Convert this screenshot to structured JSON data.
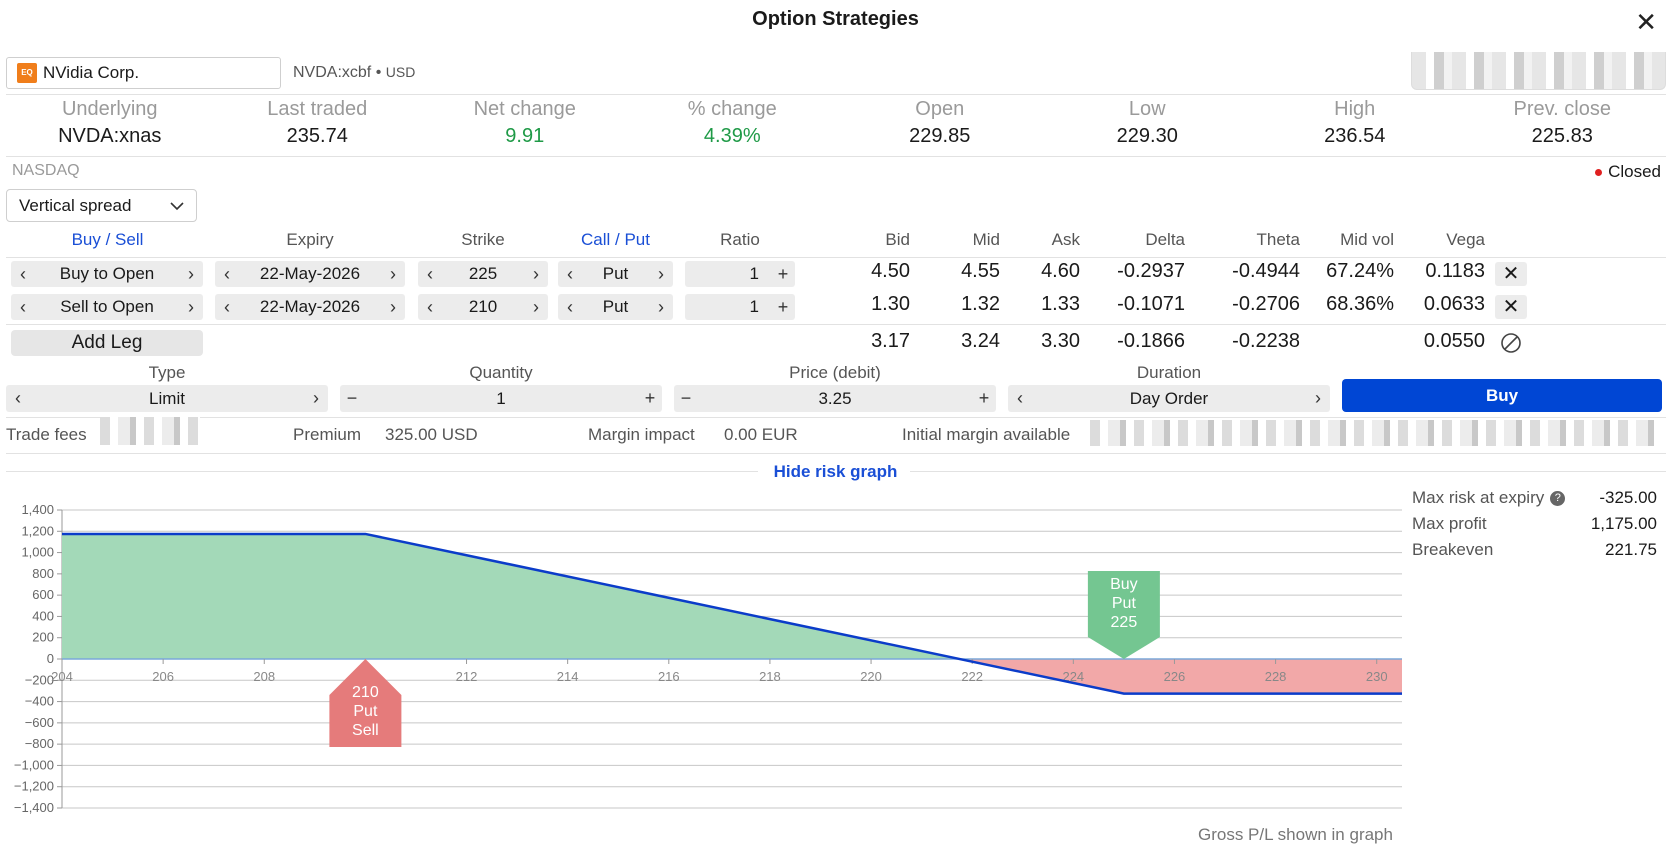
{
  "title": "Option Strategies",
  "instrument": {
    "name": "NVidia Corp.",
    "logo_text": "EQ",
    "symbol": "NVDA:xcbf",
    "currency": "USD"
  },
  "quote": [
    {
      "label": "Underlying",
      "value": "NVDA:xnas",
      "color": ""
    },
    {
      "label": "Last traded",
      "value": "235.74",
      "color": ""
    },
    {
      "label": "Net change",
      "value": "9.91",
      "color": "green"
    },
    {
      "label": "% change",
      "value": "4.39%",
      "color": "green"
    },
    {
      "label": "Open",
      "value": "229.85",
      "color": ""
    },
    {
      "label": "Low",
      "value": "229.30",
      "color": ""
    },
    {
      "label": "High",
      "value": "236.54",
      "color": ""
    },
    {
      "label": "Prev. close",
      "value": "225.83",
      "color": ""
    }
  ],
  "exchange": "NASDAQ",
  "market_status": "Closed",
  "strategy_select": "Vertical spread",
  "leg_headers": {
    "buy_sell": "Buy / Sell",
    "expiry": "Expiry",
    "strike": "Strike",
    "call_put": "Call / Put",
    "ratio": "Ratio",
    "bid": "Bid",
    "mid": "Mid",
    "ask": "Ask",
    "delta": "Delta",
    "theta": "Theta",
    "mid_vol": "Mid vol",
    "vega": "Vega"
  },
  "legs": [
    {
      "side": "Buy to Open",
      "expiry": "22-May-2026",
      "strike": "225",
      "type": "Put",
      "ratio": "1",
      "bid": "4.50",
      "mid": "4.55",
      "ask": "4.60",
      "delta": "-0.2937",
      "theta": "-0.4944",
      "mid_vol": "67.24%",
      "vega": "0.1183"
    },
    {
      "side": "Sell to Open",
      "expiry": "22-May-2026",
      "strike": "210",
      "type": "Put",
      "ratio": "1",
      "bid": "1.30",
      "mid": "1.32",
      "ask": "1.33",
      "delta": "-0.1071",
      "theta": "-0.2706",
      "mid_vol": "68.36%",
      "vega": "0.0633"
    }
  ],
  "totals": {
    "add_leg": "Add Leg",
    "bid": "3.17",
    "mid": "3.24",
    "ask": "3.30",
    "delta": "-0.1866",
    "theta": "-0.2238",
    "vega": "0.0550"
  },
  "order": {
    "type_label": "Type",
    "type_value": "Limit",
    "quantity_label": "Quantity",
    "quantity_value": "1",
    "price_label": "Price (debit)",
    "price_value": "3.25",
    "duration_label": "Duration",
    "duration_value": "Day Order",
    "buy_label": "Buy"
  },
  "fees": {
    "trade_fees_label": "Trade fees",
    "premium_label": "Premium",
    "premium_value": "325.00 USD",
    "margin_label": "Margin impact",
    "margin_value": "0.00 EUR",
    "initial_margin_label": "Initial margin available"
  },
  "hide_graph": "Hide risk graph",
  "stats": [
    {
      "label": "Max risk at expiry",
      "value": "-325.00",
      "help": "?"
    },
    {
      "label": "Max profit",
      "value": "1,175.00",
      "help": ""
    },
    {
      "label": "Breakeven",
      "value": "221.75",
      "help": ""
    }
  ],
  "footnote": "Gross P/L shown in graph",
  "colors": {
    "accent": "#0046d4",
    "profit": "#a3d9b8",
    "loss": "#f2a8a8",
    "buy_marker": "#74c691",
    "sell_marker": "#e57b7b",
    "line": "#0b3cc9"
  },
  "chart_data": {
    "type": "area",
    "x": [
      204,
      210,
      225,
      230.5
    ],
    "y": [
      1175,
      1175,
      -325,
      -325
    ],
    "breakeven": 221.75,
    "xlim": [
      204,
      230.5
    ],
    "ylim": [
      -1400,
      1400
    ],
    "x_ticks": [
      "204",
      "206",
      "208",
      "210",
      "212",
      "214",
      "216",
      "218",
      "220",
      "222",
      "224",
      "226",
      "228",
      "230"
    ],
    "y_ticks": [
      "1,400",
      "1,200",
      "1,000",
      "800",
      "600",
      "400",
      "200",
      "0",
      "−200",
      "−400",
      "−600",
      "−800",
      "−1,000",
      "−1,200",
      "−1,400"
    ],
    "grid": true,
    "markers": [
      {
        "strike": 225,
        "lines": [
          "Buy",
          "Put",
          "225"
        ],
        "kind": "buy"
      },
      {
        "strike": 210,
        "lines": [
          "210",
          "Put",
          "Sell"
        ],
        "kind": "sell"
      }
    ]
  }
}
